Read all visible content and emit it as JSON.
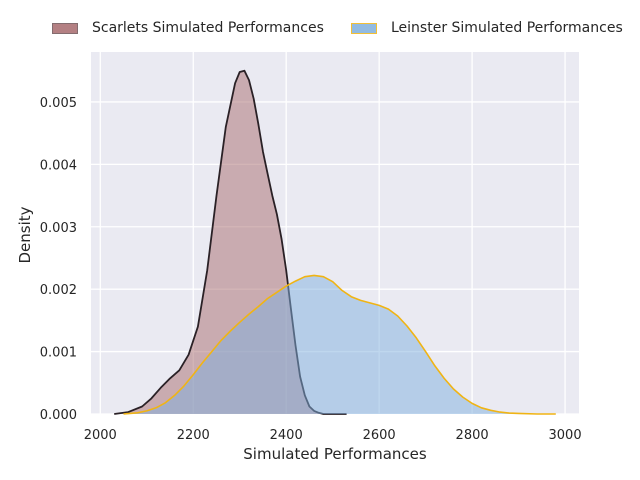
{
  "chart_data": {
    "type": "area",
    "title": "",
    "xlabel": "Simulated Performances",
    "ylabel": "Density",
    "xlim": [
      1980,
      3030
    ],
    "ylim": [
      0,
      0.0058
    ],
    "xticks": [
      2000,
      2200,
      2400,
      2600,
      2800,
      3000
    ],
    "yticks": [
      0.0,
      0.001,
      0.002,
      0.003,
      0.004,
      0.005
    ],
    "grid": true,
    "legend_position": "top",
    "series": [
      {
        "name": "Scarlets Simulated Performances",
        "fill": "#a86b6e",
        "line": "#2a2126",
        "x": [
          2030,
          2060,
          2090,
          2110,
          2130,
          2150,
          2170,
          2190,
          2210,
          2230,
          2250,
          2270,
          2290,
          2300,
          2310,
          2320,
          2330,
          2340,
          2350,
          2360,
          2370,
          2380,
          2390,
          2400,
          2410,
          2420,
          2430,
          2440,
          2450,
          2460,
          2470,
          2480,
          2500,
          2530
        ],
        "y": [
          0.0,
          3e-05,
          0.00012,
          0.00025,
          0.00042,
          0.00057,
          0.0007,
          0.00095,
          0.0014,
          0.0023,
          0.0035,
          0.0046,
          0.0053,
          0.00548,
          0.0055,
          0.00535,
          0.00505,
          0.00465,
          0.0042,
          0.00385,
          0.0035,
          0.0032,
          0.0028,
          0.0023,
          0.0017,
          0.0011,
          0.0006,
          0.0003,
          0.00012,
          5e-05,
          2e-05,
          0.0,
          0.0,
          0.0
        ]
      },
      {
        "name": "Leinster Simulated Performances",
        "fill": "#7fb0de",
        "line": "#f0b414",
        "x": [
          2050,
          2080,
          2100,
          2120,
          2140,
          2160,
          2180,
          2200,
          2220,
          2240,
          2260,
          2280,
          2300,
          2320,
          2340,
          2360,
          2380,
          2400,
          2420,
          2440,
          2460,
          2480,
          2500,
          2520,
          2540,
          2560,
          2580,
          2600,
          2620,
          2640,
          2660,
          2680,
          2700,
          2720,
          2740,
          2760,
          2780,
          2800,
          2820,
          2840,
          2860,
          2880,
          2900,
          2940,
          2980
        ],
        "y": [
          0.0,
          2e-05,
          5e-05,
          0.0001,
          0.00018,
          0.0003,
          0.00045,
          0.00063,
          0.00082,
          0.001,
          0.00118,
          0.00133,
          0.00147,
          0.0016,
          0.00172,
          0.00185,
          0.00195,
          0.00205,
          0.00213,
          0.0022,
          0.00222,
          0.0022,
          0.00212,
          0.00198,
          0.00188,
          0.00182,
          0.00178,
          0.00174,
          0.00168,
          0.00157,
          0.00141,
          0.00122,
          0.001,
          0.00077,
          0.00057,
          0.0004,
          0.00027,
          0.00017,
          0.0001,
          6e-05,
          3e-05,
          1.5e-05,
          1e-05,
          0.0,
          0.0
        ]
      }
    ]
  }
}
